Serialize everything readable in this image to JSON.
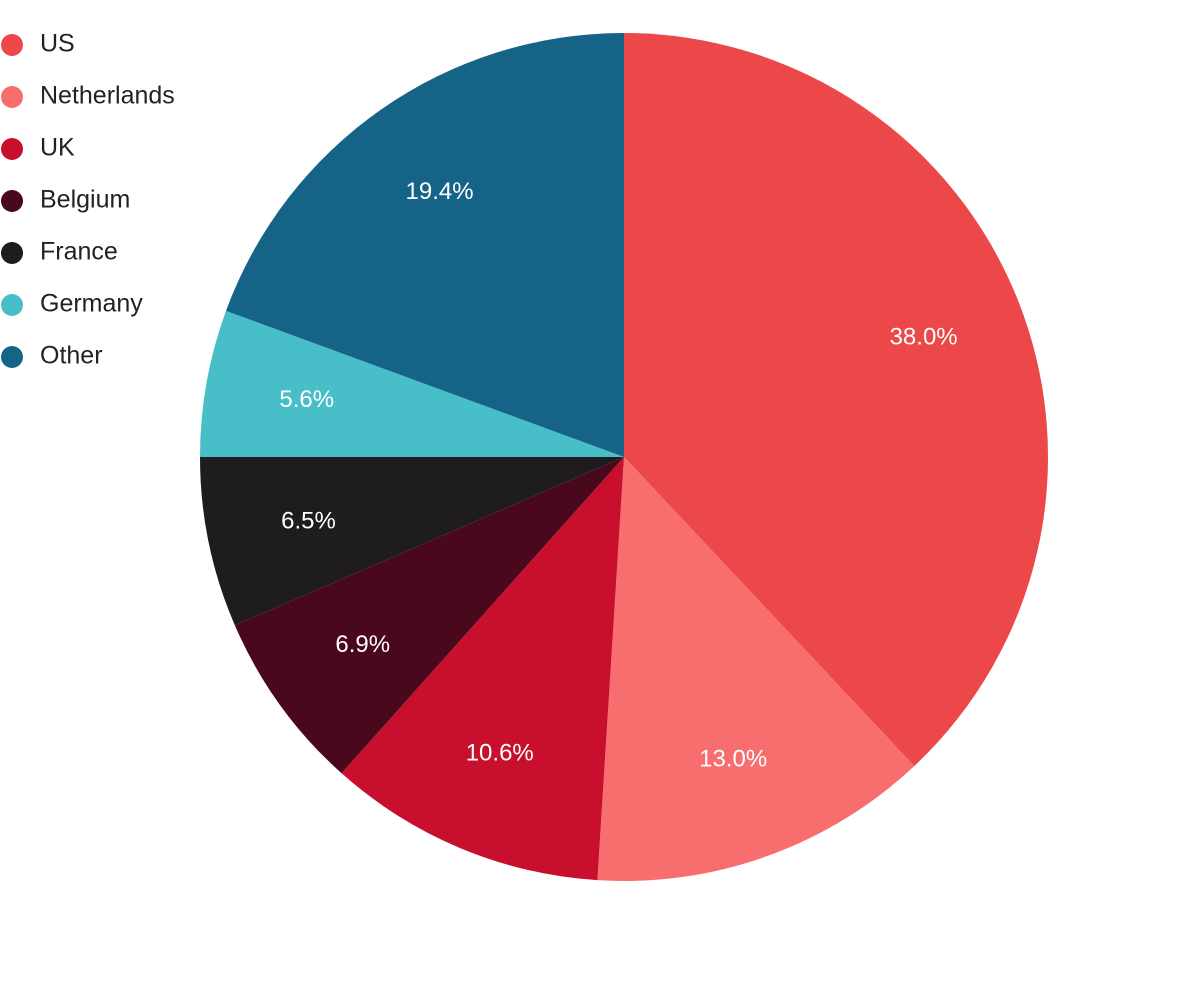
{
  "chart_data": {
    "type": "pie",
    "categories": [
      "US",
      "Netherlands",
      "UK",
      "Belgium",
      "France",
      "Germany",
      "Other"
    ],
    "values": [
      38.0,
      13.0,
      10.6,
      6.9,
      6.5,
      5.6,
      19.4
    ],
    "value_labels": [
      "38.0%",
      "13.0%",
      "10.6%",
      "6.9%",
      "6.5%",
      "5.6%",
      "19.4%"
    ],
    "colors": [
      "#ec4849",
      "#f86e6e",
      "#c8102e",
      "#4a081d",
      "#1e1c1e",
      "#48bec8",
      "#166388"
    ],
    "legend": "top-left"
  }
}
